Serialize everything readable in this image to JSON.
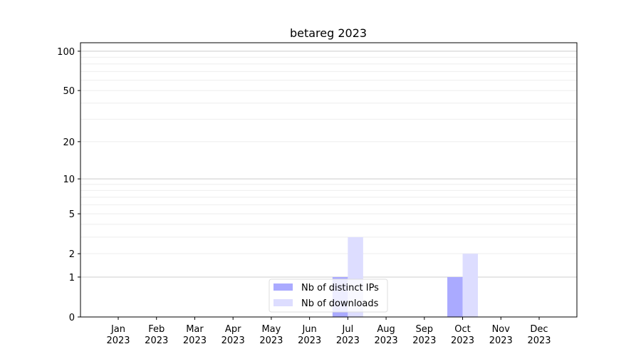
{
  "chart_data": {
    "type": "bar",
    "title": "betareg 2023",
    "xlabel": "",
    "ylabel": "",
    "yscale": "log(y+1)",
    "ylim": [
      0,
      116
    ],
    "yticks": [
      0,
      1,
      2,
      5,
      10,
      20,
      50,
      100
    ],
    "ytick_labels": [
      "0",
      "1",
      "2",
      "5",
      "10",
      "20",
      "50",
      "100"
    ],
    "grid": true,
    "legend_position": "lower-center",
    "categories": [
      "Jan\n2023",
      "Feb\n2023",
      "Mar\n2023",
      "Apr\n2023",
      "May\n2023",
      "Jun\n2023",
      "Jul\n2023",
      "Aug\n2023",
      "Sep\n2023",
      "Oct\n2023",
      "Nov\n2023",
      "Dec\n2023"
    ],
    "series": [
      {
        "name": "Nb of distinct IPs",
        "color": "#aaaaff",
        "values": [
          0,
          0,
          0,
          0,
          0,
          0,
          1,
          0,
          0,
          1,
          0,
          0
        ]
      },
      {
        "name": "Nb of downloads",
        "color": "#ddddff",
        "values": [
          0,
          0,
          0,
          0,
          0,
          0,
          3,
          0,
          0,
          2,
          0,
          0
        ]
      }
    ]
  }
}
